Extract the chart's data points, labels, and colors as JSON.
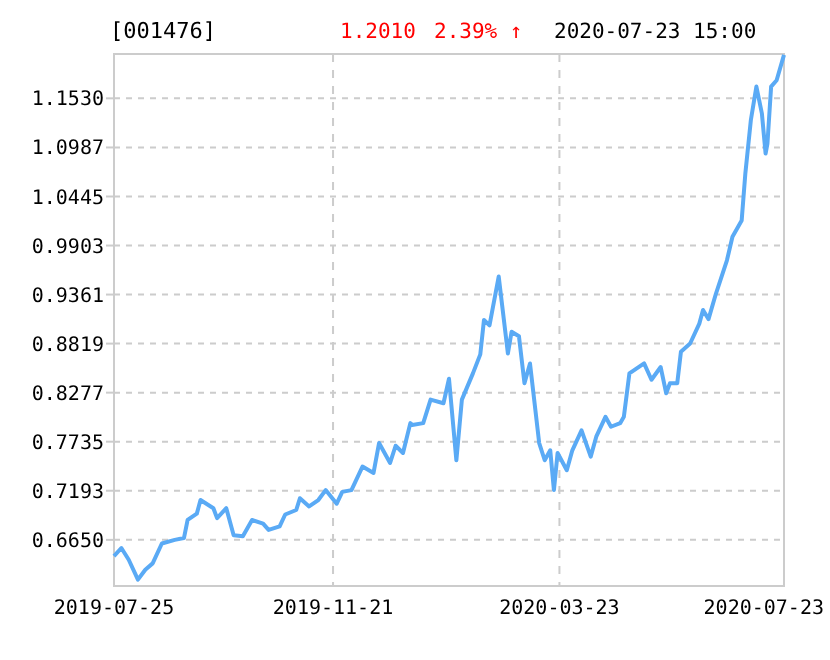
{
  "chart_data": {
    "type": "line",
    "title": "[001476]",
    "annotations": [
      "1.2010",
      "2.39% ↑",
      "2020-07-23 15:00"
    ],
    "x": [
      "2019-07-25",
      "2019-07-29",
      "2019-08-02",
      "2019-08-07",
      "2019-08-11",
      "2019-08-15",
      "2019-08-20",
      "2019-08-27",
      "2019-09-01",
      "2019-09-03",
      "2019-09-08",
      "2019-09-10",
      "2019-09-17",
      "2019-09-19",
      "2019-09-24",
      "2019-09-28",
      "2019-10-03",
      "2019-10-08",
      "2019-10-14",
      "2019-10-17",
      "2019-10-23",
      "2019-10-26",
      "2019-11-01",
      "2019-11-03",
      "2019-11-08",
      "2019-11-13",
      "2019-11-17",
      "2019-11-23",
      "2019-11-26",
      "2019-12-01",
      "2019-12-07",
      "2019-12-13",
      "2019-12-16",
      "2019-12-22",
      "2019-12-25",
      "2019-12-29",
      "2020-01-02",
      "2020-01-03",
      "2020-01-09",
      "2020-01-13",
      "2020-01-20",
      "2020-01-23",
      "2020-01-27",
      "2020-01-30",
      "2020-02-05",
      "2020-02-09",
      "2020-02-11",
      "2020-02-14",
      "2020-02-19",
      "2020-02-24",
      "2020-02-26",
      "2020-03-01",
      "2020-03-04",
      "2020-03-07",
      "2020-03-12",
      "2020-03-15",
      "2020-03-18",
      "2020-03-20",
      "2020-03-22",
      "2020-03-27",
      "2020-03-30",
      "2020-04-04",
      "2020-04-09",
      "2020-04-12",
      "2020-04-17",
      "2020-04-20",
      "2020-04-25",
      "2020-04-27",
      "2020-04-30",
      "2020-05-08",
      "2020-05-12",
      "2020-05-17",
      "2020-05-20",
      "2020-05-22",
      "2020-05-26",
      "2020-05-28",
      "2020-06-02",
      "2020-06-07",
      "2020-06-09",
      "2020-06-12",
      "2020-06-16",
      "2020-06-22",
      "2020-06-25",
      "2020-06-30",
      "2020-07-02",
      "2020-07-05",
      "2020-07-08",
      "2020-07-11",
      "2020-07-13",
      "2020-07-14",
      "2020-07-16",
      "2020-07-19",
      "2020-07-23"
    ],
    "series": [
      {
        "color": "#5aaaf5",
        "values": [
          0.647,
          0.656,
          0.643,
          0.621,
          0.632,
          0.639,
          0.661,
          0.665,
          0.667,
          0.687,
          0.694,
          0.709,
          0.7,
          0.689,
          0.7,
          0.67,
          0.669,
          0.687,
          0.683,
          0.676,
          0.68,
          0.693,
          0.698,
          0.711,
          0.702,
          0.709,
          0.72,
          0.705,
          0.718,
          0.72,
          0.746,
          0.739,
          0.772,
          0.75,
          0.769,
          0.761,
          0.794,
          0.792,
          0.794,
          0.82,
          0.816,
          0.843,
          0.753,
          0.82,
          0.849,
          0.87,
          0.908,
          0.902,
          0.956,
          0.871,
          0.895,
          0.89,
          0.838,
          0.86,
          0.772,
          0.753,
          0.764,
          0.72,
          0.761,
          0.742,
          0.764,
          0.786,
          0.757,
          0.779,
          0.801,
          0.79,
          0.794,
          0.801,
          0.849,
          0.86,
          0.842,
          0.856,
          0.827,
          0.838,
          0.838,
          0.873,
          0.882,
          0.904,
          0.919,
          0.909,
          0.937,
          0.974,
          1.0,
          1.018,
          1.07,
          1.129,
          1.166,
          1.136,
          1.092,
          1.103,
          1.166,
          1.173,
          1.201
        ]
      }
    ],
    "xlim": [
      "2019-07-25",
      "2020-07-23"
    ],
    "xticks": [
      {
        "value": "2019-07-25",
        "label": "2019-07-25"
      },
      {
        "value": "2019-11-21",
        "label": "2019-11-21"
      },
      {
        "value": "2020-03-23",
        "label": "2020-03-23"
      },
      {
        "value": "2020-07-23",
        "label": "2020-07-23"
      }
    ],
    "ylim": [
      0.614,
      1.202
    ],
    "yticks": [
      {
        "value": 0.665,
        "label": "0.6650"
      },
      {
        "value": 0.7193,
        "label": "0.7193"
      },
      {
        "value": 0.7735,
        "label": "0.7735"
      },
      {
        "value": 0.8277,
        "label": "0.8277"
      },
      {
        "value": 0.8819,
        "label": "0.8819"
      },
      {
        "value": 0.9361,
        "label": "0.9361"
      },
      {
        "value": 0.9903,
        "label": "0.9903"
      },
      {
        "value": 1.0445,
        "label": "1.0445"
      },
      {
        "value": 1.0987,
        "label": "1.0987"
      },
      {
        "value": 1.153,
        "label": "1.1530"
      }
    ],
    "grid": true,
    "marker": "none",
    "line_style": "solid"
  }
}
